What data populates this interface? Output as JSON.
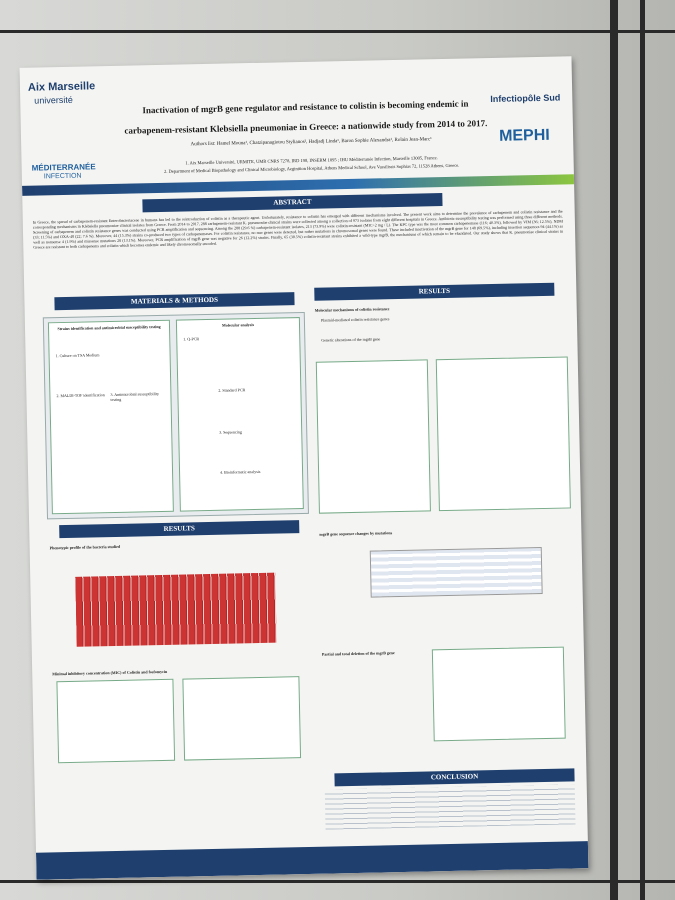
{
  "header": {
    "title_line1": "Inactivation of mgrB gene regulator and resistance to colistin is becoming endemic in",
    "title_line2": "carbapenem-resistant Klebsiella pneumoniae in Greece: a nationwide study from 2014 to 2017.",
    "authors": "Authors list: Hamel Mouna¹, Chatzipanagiotou Stylianos², Hadjadj Linda¹, Baron Sophie Alexandra¹, Rolain Jean-Marc¹",
    "affiliations": [
      "1. Aix Marseille Université, URMITE, UMR CNRS 7278, IRD 198, INSERM 1095 ; IHU Méditerranée Infection, Marseille 13005, France.",
      "2. Department of Medical Biopathology and Clinical Microbiology, Aeginition Hospital, Athens Medical School, Ave Vassilissis Sophias 72, 11528 Athens, Greece."
    ],
    "logos": [
      "Aix Marseille",
      "université",
      "MÉDITERRANÉE",
      "INFECTION",
      "Infectiopôle Sud",
      "MEPHI"
    ]
  },
  "abstract": {
    "heading": "ABSTRACT",
    "text": "In Greece, the spread of carbapenem-resistant Enterobacteriaceae in humans has led to the reintroduction of colistin as a therapeutic agent. Unfortunately, resistance to colistin has emerged with different mechanisms involved. The present work aims to determine the prevalence of carbapenem and colistin resistance and the corresponding mechanisms in Klebsiella pneumoniae clinical isolates from Greece. From 2014 to 2017, 288 carbapenem-resistant K. pneumoniae clinical strains were collected among a collection of 973 isolates from eight different hospitals in Greece. Antibiotic susceptibility testing was performed using three different methods. Screening of carbapenem and colistin resistance genes was conducted using PCR amplification and sequencing. Among the 288 (29.6 %) carbapenem-resistant isolates, 213 (73.9%) were colistin-resistant (MIC>2 mg / L). The KPC type was the most common carbapenemase (116; 40.3%), followed by VIM (36; 12.5%), NDM (33; 11.5%) and OXA-48 (22; 7.6 %). Moreover, 44 (15.3%) strains co-produced two types of carbapenemases. For colistin resistance, no mcr genes were detected, but rather mutations in chromosomal genes were found. These included inactivation of the mgrB gene for 148 (69.5%), including insertion sequences 94 (44.1%) as well as nonsense 4 (1.9%) and missense mutations 28 (13.1%). Moreover, PCR amplification of mgrB gene was negative for 26 (12.2%) strains. Finally, 65 (30.5%) colistin-resistant strains exhibited a wild-type mgrB, the mechanisms of which remain to be elucidated. Our study shows that K. pneumoniae clinical strains in Greece are resistant to both carbapenems and colistin which becomes endemic and likely chromosomally encoded."
  },
  "methods": {
    "heading": "MATERIALS & METHODS",
    "boxes": [
      "Strains identification and antimicrobial susceptibility testing",
      "Molecular analysis"
    ],
    "steps": [
      "1. Culture on TSA Medium",
      "2. MALDI-TOF identification",
      "3. Antimicrobial susceptibility testing",
      "1. Q-PCR",
      "2. Standard PCR",
      "3. Sequencing",
      "4. Bioinformatic analysis"
    ]
  },
  "results_left": {
    "heading": "RESULTS",
    "items": [
      "Phenotypic profile of the bacteria studied",
      "Minimal inhibitory concentration (MIC) of Colistin and fosfomycin"
    ]
  },
  "results_right": {
    "heading": "RESULTS",
    "items": [
      "Molecular mechanisms of colistin resistance",
      "Plasmid-mediated colistin resistance genes",
      "Genetic alterations of the mgrB gene",
      "mgrB gene sequence changes by mutations",
      "Partial and total deletion of the mgrB gene"
    ]
  },
  "conclusion": {
    "heading": "CONCLUSION"
  }
}
